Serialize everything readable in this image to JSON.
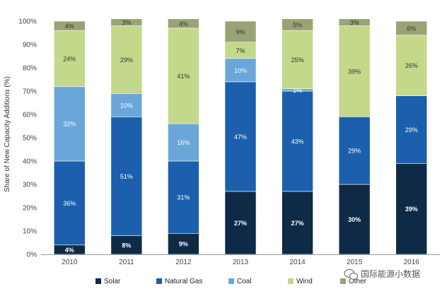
{
  "chart_data": {
    "type": "bar",
    "stacked": true,
    "title": "",
    "xlabel": "",
    "ylabel": "Share of New Capacity Additions (%)",
    "ylim": [
      0,
      100
    ],
    "yticks": [
      0,
      10,
      20,
      30,
      40,
      50,
      60,
      70,
      80,
      90,
      100
    ],
    "ytick_suffix": "%",
    "grid": false,
    "legend_position": "bottom",
    "categories": [
      "2010",
      "2011",
      "2012",
      "2013",
      "2014",
      "2015",
      "2016"
    ],
    "series": [
      {
        "name": "Solar",
        "color": "#0f2a47",
        "label_color": "#ffffff",
        "bold": true,
        "values": [
          4,
          8,
          9,
          27,
          27,
          30,
          39
        ],
        "labels": [
          "4%",
          "8%",
          "9%",
          "27%",
          "27%",
          "30%",
          "39%"
        ]
      },
      {
        "name": "Natural Gas",
        "color": "#1b5fad",
        "label_color": "#ffffff",
        "bold": false,
        "values": [
          36,
          51,
          31,
          47,
          43,
          29,
          29
        ],
        "labels": [
          "36%",
          "51%",
          "31%",
          "47%",
          "43%",
          "29%",
          "29%"
        ]
      },
      {
        "name": "Coal",
        "color": "#6aa7d8",
        "label_color": "#ffffff",
        "bold": false,
        "values": [
          32,
          10,
          16,
          10,
          1,
          0,
          0
        ],
        "labels": [
          "32%",
          "10%",
          "16%",
          "10%",
          "1%",
          "",
          ""
        ]
      },
      {
        "name": "Wind",
        "color": "#c3d88a",
        "label_color": "#333333",
        "bold": false,
        "values": [
          24,
          29,
          41,
          7,
          25,
          39,
          26
        ],
        "labels": [
          "24%",
          "29%",
          "41%",
          "7%",
          "25%",
          "39%",
          "26%"
        ]
      },
      {
        "name": "Other",
        "color": "#9aa374",
        "label_color": "#333333",
        "bold": false,
        "values": [
          4,
          3,
          4,
          9,
          5,
          3,
          6
        ],
        "labels": [
          "4%",
          "3%",
          "4%",
          "9%",
          "5%",
          "3%",
          "6%"
        ]
      }
    ]
  },
  "watermark": {
    "text": "国际能源小数据",
    "icon": "wechat-icon"
  }
}
